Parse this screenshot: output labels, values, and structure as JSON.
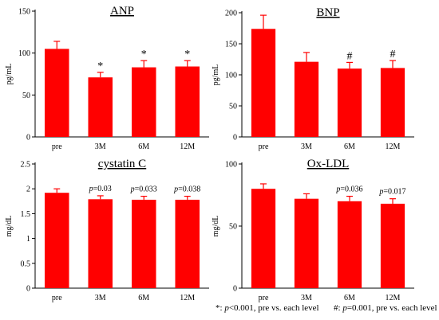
{
  "chart_data": [
    {
      "type": "bar",
      "title": "ANP",
      "ylabel": "pg/mL",
      "categories": [
        "pre",
        "3M",
        "6M",
        "12M"
      ],
      "values": [
        105,
        71,
        83,
        84
      ],
      "errors": [
        9,
        6,
        8,
        7
      ],
      "ylim": [
        0,
        150
      ],
      "yticks": [
        "0",
        "50",
        "100",
        "150"
      ],
      "annotations": [
        "",
        "*",
        "*",
        "*"
      ],
      "bar_color": "#ff0000"
    },
    {
      "type": "bar",
      "title": "BNP",
      "ylabel": "pg/mL",
      "categories": [
        "pre",
        "3M",
        "6M",
        "12M"
      ],
      "values": [
        174,
        121,
        110,
        111
      ],
      "errors": [
        22,
        15,
        10,
        12
      ],
      "ylim": [
        0,
        200
      ],
      "yticks": [
        "0",
        "50",
        "100",
        "150",
        "200"
      ],
      "annotations": [
        "",
        "",
        "#",
        "#"
      ],
      "bar_color": "#ff0000"
    },
    {
      "type": "bar",
      "title": "cystatin C",
      "ylabel": "mg/dL",
      "categories": [
        "pre",
        "3M",
        "6M",
        "12M"
      ],
      "values": [
        1.92,
        1.79,
        1.78,
        1.78
      ],
      "errors": [
        0.08,
        0.07,
        0.07,
        0.07
      ],
      "ylim": [
        0,
        2.5
      ],
      "yticks": [
        "0",
        "0.5",
        "1",
        "1.5",
        "2",
        "2.5"
      ],
      "annotations": [
        {
          "p": "",
          "value": ""
        },
        {
          "p": "p",
          "value": "=0.03"
        },
        {
          "p": "p",
          "value": "=0.033"
        },
        {
          "p": "p",
          "value": "=0.038"
        }
      ],
      "bar_color": "#ff0000"
    },
    {
      "type": "bar",
      "title": "Ox-LDL",
      "ylabel": "mg/dL",
      "categories": [
        "pre",
        "3M",
        "6M",
        "12M"
      ],
      "values": [
        80,
        72,
        70,
        68
      ],
      "errors": [
        4,
        4,
        4,
        4
      ],
      "ylim": [
        0,
        100
      ],
      "yticks": [
        "0",
        "50",
        "100"
      ],
      "annotations": [
        {
          "p": "",
          "value": ""
        },
        {
          "p": "",
          "value": ""
        },
        {
          "p": "p",
          "value": "=0.036"
        },
        {
          "p": "p",
          "value": "=0.017"
        }
      ],
      "bar_color": "#ff0000"
    }
  ],
  "footnotes": {
    "left": {
      "symbol": "*:",
      "p": "p",
      "rest": "<0.001, pre vs. each level"
    },
    "right": {
      "symbol": "#:",
      "p": "p",
      "rest": "=0.001, pre vs. each level"
    }
  }
}
